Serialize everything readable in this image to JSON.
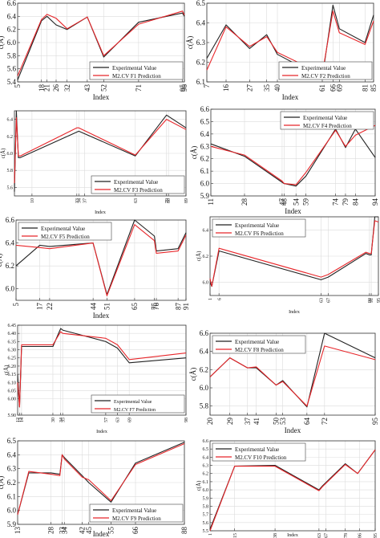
{
  "chart_data": [
    {
      "type": "line",
      "ylabel": "c(Å)",
      "xlabel": "Index",
      "xticks": [
        5,
        18,
        21,
        26,
        32,
        43,
        52,
        71,
        95,
        96
      ],
      "xlim": [
        5,
        96
      ],
      "yticks": [
        5.4,
        5.6,
        5.8,
        6.0,
        6.2,
        6.4,
        6.6
      ],
      "ylim": [
        5.4,
        6.6
      ],
      "legend_position": "bottom-right",
      "grid": true,
      "series": [
        {
          "name": "Experimental Value",
          "color": "#222222",
          "x": [
            5,
            18,
            21,
            26,
            32,
            43,
            52,
            71,
            95,
            96
          ],
          "y": [
            5.43,
            6.33,
            6.4,
            6.27,
            6.2,
            6.39,
            5.78,
            6.31,
            6.45,
            6.4
          ]
        },
        {
          "name": "M2.CV F1 Prediction",
          "color": "#e8262a",
          "x": [
            5,
            18,
            21,
            26,
            32,
            43,
            52,
            71,
            95,
            96
          ],
          "y": [
            5.49,
            6.35,
            6.43,
            6.37,
            6.21,
            6.39,
            5.8,
            6.28,
            6.48,
            6.42
          ]
        }
      ]
    },
    {
      "type": "line",
      "ylabel": "c(Å)",
      "xlabel": "Index",
      "xticks": [
        7,
        16,
        27,
        35,
        40,
        61,
        66,
        69,
        81,
        85
      ],
      "xlim": [
        7,
        85
      ],
      "yticks": [
        6.1,
        6.2,
        6.3,
        6.4,
        6.5
      ],
      "ylim": [
        6.1,
        6.5
      ],
      "legend_position": "bottom-right",
      "grid": true,
      "series": [
        {
          "name": "Experimental Value",
          "color": "#222222",
          "x": [
            7,
            16,
            27,
            35,
            40,
            61,
            66,
            69,
            81,
            85
          ],
          "y": [
            6.22,
            6.39,
            6.27,
            6.34,
            6.24,
            6.12,
            6.49,
            6.37,
            6.3,
            6.44
          ]
        },
        {
          "name": "M2.CV F2 Prediction",
          "color": "#e8262a",
          "x": [
            7,
            16,
            27,
            35,
            40,
            61,
            66,
            69,
            81,
            85
          ],
          "y": [
            6.16,
            6.38,
            6.28,
            6.33,
            6.25,
            6.14,
            6.46,
            6.35,
            6.29,
            6.41
          ]
        }
      ]
    },
    {
      "type": "line",
      "ylabel": "c(Å)",
      "xlabel": "Index",
      "xticks": [
        10,
        33,
        34,
        37,
        63,
        79,
        80,
        89
      ],
      "xlim": [
        1,
        89
      ],
      "yticks": [
        5.6,
        5.8,
        6.0,
        6.2,
        6.4
      ],
      "ylim": [
        5.5,
        6.5
      ],
      "legend_position": "bottom-right",
      "grid": true,
      "series": [
        {
          "name": "Experimental Value",
          "color": "#222222",
          "x": [
            1,
            2,
            3,
            4,
            33,
            34,
            63,
            79,
            89
          ],
          "y": [
            5.55,
            6.5,
            5.95,
            5.95,
            6.25,
            6.26,
            5.97,
            6.45,
            6.3
          ]
        },
        {
          "name": "M2.CV F3 Prediction",
          "color": "#e8262a",
          "x": [
            1,
            2,
            3,
            4,
            33,
            34,
            63,
            79,
            89
          ],
          "y": [
            5.65,
            6.42,
            5.97,
            5.97,
            6.3,
            6.3,
            5.98,
            6.4,
            6.28
          ]
        }
      ]
    },
    {
      "type": "line",
      "ylabel": "c(Å)",
      "xlabel": "Index",
      "xticks": [
        11,
        28,
        47,
        48,
        54,
        59,
        74,
        79,
        84,
        94
      ],
      "xlim": [
        11,
        94
      ],
      "yticks": [
        5.9,
        6.0,
        6.1,
        6.2,
        6.3,
        6.4,
        6.5,
        6.6
      ],
      "ylim": [
        5.9,
        6.6
      ],
      "legend_position": "top-right",
      "grid": true,
      "series": [
        {
          "name": "Experimental Value",
          "color": "#222222",
          "x": [
            11,
            28,
            47,
            48,
            54,
            59,
            74,
            79,
            84,
            94
          ],
          "y": [
            6.32,
            6.22,
            6.01,
            6.0,
            5.98,
            6.06,
            6.44,
            6.29,
            6.44,
            6.21
          ]
        },
        {
          "name": "M2.CV F4 Prediction",
          "color": "#e8262a",
          "x": [
            11,
            28,
            47,
            48,
            54,
            59,
            74,
            79,
            84,
            94
          ],
          "y": [
            6.3,
            6.23,
            6.02,
            6.0,
            5.99,
            6.09,
            6.43,
            6.3,
            6.39,
            6.47
          ]
        }
      ]
    },
    {
      "type": "line",
      "ylabel": "c(Å)",
      "xlabel": "Index",
      "xticks": [
        5,
        17,
        22,
        44,
        51,
        65,
        75,
        76,
        87,
        91
      ],
      "xlim": [
        5,
        91
      ],
      "yticks": [
        6.0,
        6.2,
        6.4,
        6.6
      ],
      "ylim": [
        5.9,
        6.6
      ],
      "legend_position": "top-left",
      "grid": true,
      "series": [
        {
          "name": "Experimental Value",
          "color": "#222222",
          "x": [
            5,
            17,
            22,
            44,
            51,
            65,
            75,
            76,
            87,
            91
          ],
          "y": [
            6.2,
            6.38,
            6.37,
            6.4,
            5.95,
            6.6,
            6.46,
            6.33,
            6.35,
            6.49
          ]
        },
        {
          "name": "M2.CV F5 Prediction",
          "color": "#e8262a",
          "x": [
            5,
            17,
            22,
            44,
            51,
            65,
            75,
            76,
            87,
            91
          ],
          "y": [
            6.38,
            6.36,
            6.35,
            6.4,
            5.94,
            6.56,
            6.42,
            6.31,
            6.33,
            6.47
          ]
        }
      ]
    },
    {
      "type": "line",
      "ylabel": "c(Å)",
      "xlabel": "Index",
      "xticks": [
        1,
        6,
        63,
        67,
        90,
        91,
        95
      ],
      "xlim": [
        1,
        95
      ],
      "yticks": [
        6.0,
        6.2,
        6.4
      ],
      "ylim": [
        5.9,
        6.5
      ],
      "legend_position": "top-left",
      "grid": true,
      "series": [
        {
          "name": "Experimental Value",
          "color": "#222222",
          "x": [
            1,
            2,
            6,
            63,
            67,
            88,
            90,
            91,
            93,
            95
          ],
          "y": [
            6.0,
            5.97,
            6.24,
            6.02,
            6.04,
            6.22,
            6.21,
            6.21,
            6.5,
            6.5
          ]
        },
        {
          "name": "M2.CV F6 Prediction",
          "color": "#e8262a",
          "x": [
            1,
            2,
            6,
            63,
            67,
            88,
            90,
            91,
            93,
            95
          ],
          "y": [
            6.03,
            5.97,
            6.26,
            6.04,
            6.06,
            6.23,
            6.22,
            6.22,
            6.47,
            6.46
          ]
        }
      ]
    },
    {
      "type": "line",
      "ylabel": "c(Å)",
      "xlabel": "Index",
      "xticks": [
        12,
        13,
        14,
        30,
        34,
        35,
        57,
        63,
        69,
        98
      ],
      "xlim": [
        12,
        98
      ],
      "yticks": [
        5.9,
        6.0,
        6.05,
        6.1,
        6.15,
        6.2,
        6.25,
        6.3,
        6.35,
        6.4,
        6.45
      ],
      "ylim": [
        5.9,
        6.45
      ],
      "legend_position": "bottom-right",
      "grid": true,
      "series": [
        {
          "name": "Experimental Value",
          "color": "#222222",
          "x": [
            12,
            13,
            14,
            30,
            34,
            35,
            57,
            63,
            69,
            98
          ],
          "y": [
            6.15,
            5.95,
            6.32,
            6.32,
            6.43,
            6.42,
            6.35,
            6.31,
            6.22,
            6.25
          ]
        },
        {
          "name": "M2.CV F7 Prediction",
          "color": "#e8262a",
          "x": [
            12,
            13,
            14,
            30,
            34,
            35,
            57,
            63,
            69,
            98
          ],
          "y": [
            6.1,
            5.95,
            6.33,
            6.33,
            6.41,
            6.4,
            6.37,
            6.33,
            6.24,
            6.28
          ]
        }
      ]
    },
    {
      "type": "line",
      "ylabel": "c(Å)",
      "xlabel": "Index",
      "xticks": [
        20,
        29,
        37,
        41,
        50,
        53,
        64,
        72,
        95
      ],
      "xlim": [
        20,
        95
      ],
      "yticks": [
        5.8,
        6.0,
        6.2,
        6.4,
        6.6
      ],
      "ylim": [
        5.7,
        6.6
      ],
      "legend_position": "top-left",
      "grid": true,
      "series": [
        {
          "name": "Experimental Value",
          "color": "#222222",
          "x": [
            20,
            29,
            37,
            41,
            50,
            53,
            64,
            72,
            95
          ],
          "y": [
            6.12,
            6.33,
            6.22,
            6.22,
            6.03,
            6.08,
            5.79,
            6.6,
            6.33
          ]
        },
        {
          "name": "M2.CV F8 Prediction",
          "color": "#e8262a",
          "x": [
            20,
            29,
            37,
            41,
            50,
            53,
            64,
            72,
            95
          ],
          "y": [
            6.12,
            6.33,
            6.22,
            6.23,
            6.03,
            6.07,
            5.8,
            6.46,
            6.31
          ]
        }
      ]
    },
    {
      "type": "line",
      "ylabel": "c(Å)",
      "xlabel": "Index",
      "xticks": [
        13,
        28,
        33,
        34,
        42,
        45,
        55,
        66,
        88
      ],
      "xlim": [
        13,
        88
      ],
      "yticks": [
        5.9,
        6.0,
        6.1,
        6.2,
        6.3,
        6.4,
        6.5
      ],
      "ylim": [
        5.9,
        6.5
      ],
      "legend_position": "bottom-right",
      "grid": true,
      "series": [
        {
          "name": "Experimental Value",
          "color": "#222222",
          "x": [
            13,
            18,
            28,
            32,
            33,
            34,
            42,
            45,
            55,
            66,
            88
          ],
          "y": [
            5.97,
            6.27,
            6.27,
            6.26,
            6.4,
            6.38,
            6.25,
            6.2,
            6.06,
            6.34,
            6.49
          ]
        },
        {
          "name": "M2.CV F9 Prediction",
          "color": "#e8262a",
          "x": [
            13,
            18,
            28,
            32,
            33,
            34,
            42,
            45,
            55,
            66,
            88
          ],
          "y": [
            5.97,
            6.28,
            6.26,
            6.25,
            6.4,
            6.37,
            6.24,
            6.22,
            6.07,
            6.33,
            6.48
          ]
        }
      ]
    },
    {
      "type": "line",
      "ylabel": "c(Å)",
      "xlabel": "Index",
      "xticks": [
        1,
        15,
        38,
        63,
        67,
        78,
        86,
        95
      ],
      "xlim": [
        1,
        95
      ],
      "yticks": [
        5.5,
        5.6,
        5.7,
        5.8,
        5.9,
        6.0,
        6.1,
        6.2,
        6.3,
        6.4,
        6.5,
        6.6
      ],
      "ylim": [
        5.5,
        6.6
      ],
      "legend_position": "top-left",
      "grid": true,
      "series": [
        {
          "name": "Experimental Value",
          "color": "#222222",
          "x": [
            1,
            15,
            38,
            63,
            65,
            78,
            85,
            95
          ],
          "y": [
            5.52,
            6.29,
            6.3,
            6.0,
            6.05,
            6.32,
            6.2,
            6.49
          ]
        },
        {
          "name": "M2.CV F10 Prediction",
          "color": "#e8262a",
          "x": [
            1,
            15,
            38,
            63,
            65,
            78,
            85,
            95
          ],
          "y": [
            5.5,
            6.29,
            6.29,
            5.99,
            6.04,
            6.31,
            6.2,
            6.49
          ]
        }
      ]
    }
  ]
}
